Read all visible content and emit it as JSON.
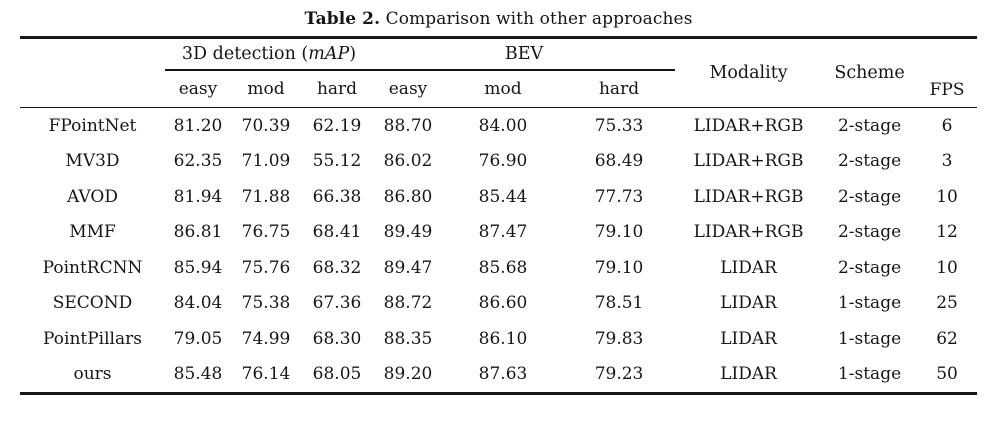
{
  "title": {
    "label": "Table 2.",
    "text": " Comparison with other approaches"
  },
  "table": {
    "group_headers": {
      "detection3d": {
        "prefix": "3D detection (",
        "italic": "mAP",
        "suffix": ")"
      },
      "bev": {
        "label": "BEV"
      }
    },
    "sub_headers": [
      "easy",
      "mod",
      "hard",
      "easy",
      "mod",
      "hard"
    ],
    "single_headers": [
      "Modality",
      "Scheme",
      "FPS"
    ],
    "rows": [
      {
        "method": "FPointNet",
        "values": [
          "81.20",
          "70.39",
          "62.19",
          "88.70",
          "84.00",
          "75.33",
          "LIDAR+RGB",
          "2-stage",
          "6"
        ],
        "bold": []
      },
      {
        "method": "MV3D",
        "values": [
          "62.35",
          "71.09",
          "55.12",
          "86.02",
          "76.90",
          "68.49",
          "LIDAR+RGB",
          "2-stage",
          "3"
        ],
        "bold": []
      },
      {
        "method": "AVOD",
        "values": [
          "81.94",
          "71.88",
          "66.38",
          "86.80",
          "85.44",
          "77.73",
          "LIDAR+RGB",
          "2-stage",
          "10"
        ],
        "bold": []
      },
      {
        "method": "MMF",
        "values": [
          "86.81",
          "76.75",
          "68.41",
          "89.49",
          "87.47",
          "79.10",
          "LIDAR+RGB",
          "2-stage",
          "12"
        ],
        "bold": [
          0,
          1,
          2,
          3
        ]
      },
      {
        "method": "PointRCNN",
        "values": [
          "85.94",
          "75.76",
          "68.32",
          "89.47",
          "85.68",
          "79.10",
          "LIDAR",
          "2-stage",
          "10"
        ],
        "bold": []
      },
      {
        "method": "SECOND",
        "values": [
          "84.04",
          "75.38",
          "67.36",
          "88.72",
          "86.60",
          "78.51",
          "LIDAR",
          "1-stage",
          "25"
        ],
        "bold": []
      },
      {
        "method": "PointPillars",
        "values": [
          "79.05",
          "74.99",
          "68.30",
          "88.35",
          "86.10",
          "79.83",
          "LIDAR",
          "1-stage",
          "62"
        ],
        "bold": [
          5
        ]
      },
      {
        "method": "ours",
        "values": [
          "85.48",
          "76.14",
          "68.05",
          "89.20",
          "87.63",
          "79.23",
          "LIDAR",
          "1-stage",
          "50"
        ],
        "bold": [
          4
        ]
      }
    ]
  },
  "colors": {
    "text": "#161616",
    "rule": "#161616",
    "background": "#ffffff"
  }
}
